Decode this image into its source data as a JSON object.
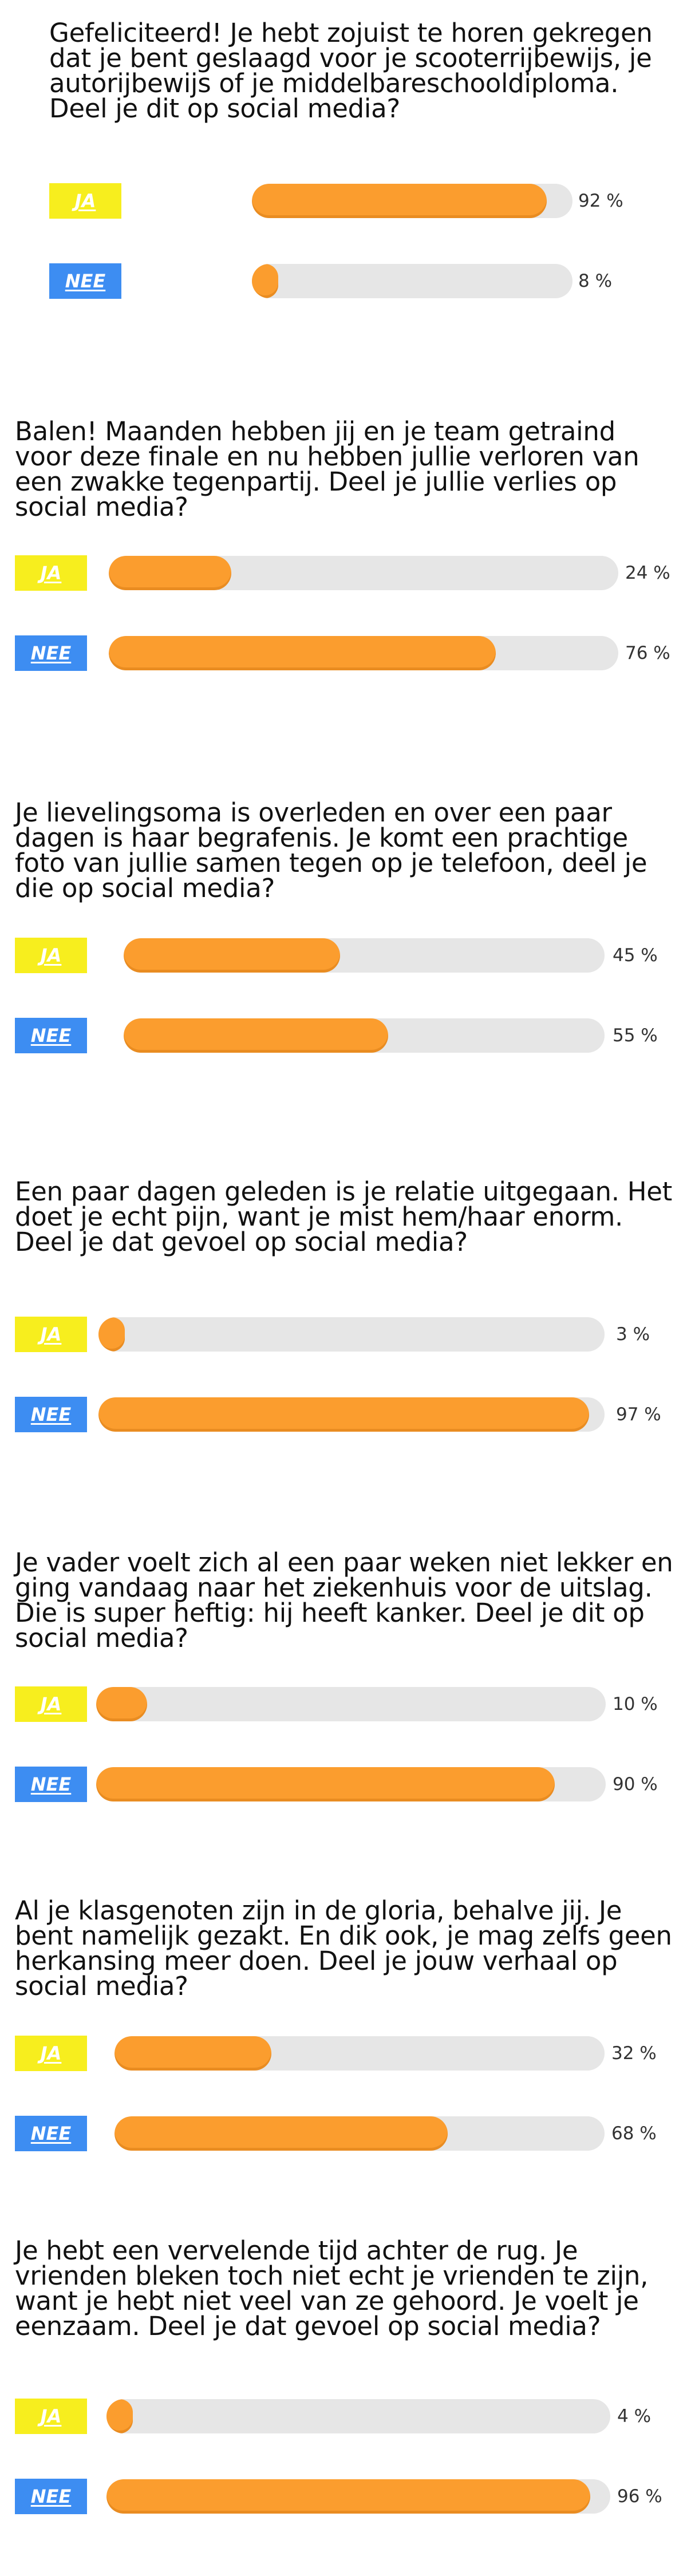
{
  "colors": {
    "ja_badge": "#f7ee1e",
    "nee_badge": "#3d8df2",
    "bar_fill": "#fb9d2e",
    "bar_track": "#e6e6e6"
  },
  "polls": [
    {
      "question": "Gefeliciteerd! Je hebt zojuist te horen gekregen dat je bent geslaagd voor je scooterrijbewijs, je autorijbewijs of je middelbareschooldiploma. Deel je dit op social media?",
      "answers": [
        {
          "label": "JA",
          "percent": 92,
          "percent_text": "92 %"
        },
        {
          "label": "NEE",
          "percent": 8,
          "percent_text": "8 %"
        }
      ]
    },
    {
      "question": "Balen! Maanden hebben jij en je team getraind voor deze finale en nu hebben jullie verloren van een zwakke tegenpartij. Deel je jullie verlies op social media?",
      "answers": [
        {
          "label": "JA",
          "percent": 24,
          "percent_text": "24 %"
        },
        {
          "label": "NEE",
          "percent": 76,
          "percent_text": "76 %"
        }
      ]
    },
    {
      "question": "Je lievelingsoma is overleden en over een paar dagen is haar begrafenis. Je komt een prachtige foto van jullie samen tegen op je telefoon, deel je die op social media?",
      "answers": [
        {
          "label": "JA",
          "percent": 45,
          "percent_text": "45 %"
        },
        {
          "label": "NEE",
          "percent": 55,
          "percent_text": "55 %"
        }
      ]
    },
    {
      "question": "Een paar dagen geleden is je relatie uitgegaan. Het doet je echt pijn, want je mist hem/haar enorm. Deel je dat gevoel op social media?",
      "answers": [
        {
          "label": "JA",
          "percent": 3,
          "percent_text": "3 %"
        },
        {
          "label": "NEE",
          "percent": 97,
          "percent_text": "97 %"
        }
      ]
    },
    {
      "question": "Je vader voelt zich al een paar weken niet lekker en ging vandaag naar het ziekenhuis voor de uitslag. Die is super heftig: hij heeft kanker. Deel je dit op social media?",
      "answers": [
        {
          "label": "JA",
          "percent": 10,
          "percent_text": "10 %"
        },
        {
          "label": "NEE",
          "percent": 90,
          "percent_text": "90 %"
        }
      ]
    },
    {
      "question": "Al je klasgenoten zijn in de gloria, behalve jij. Je bent namelijk gezakt. En dik ook, je mag zelfs geen herkansing meer doen. Deel je jouw verhaal op social media?",
      "answers": [
        {
          "label": "JA",
          "percent": 32,
          "percent_text": "32 %"
        },
        {
          "label": "NEE",
          "percent": 68,
          "percent_text": "68 %"
        }
      ]
    },
    {
      "question": "Je hebt een vervelende tijd achter de rug. Je vrienden bleken toch niet echt je vrienden te zijn, want je hebt niet veel van ze gehoord. Je voelt je eenzaam. Deel je dat gevoel op social media?",
      "answers": [
        {
          "label": "JA",
          "percent": 4,
          "percent_text": "4 %"
        },
        {
          "label": "NEE",
          "percent": 96,
          "percent_text": "96 %"
        }
      ]
    }
  ]
}
